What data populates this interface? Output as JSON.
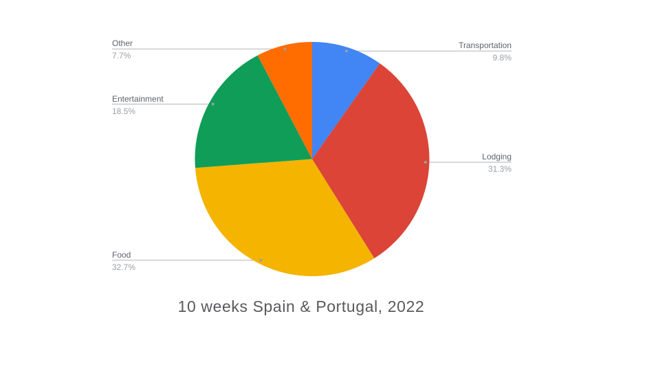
{
  "chart_data": {
    "type": "pie",
    "title": "10 weeks Spain & Portugal, 2022",
    "labels": [
      "Transportation",
      "Lodging",
      "Food",
      "Entertainment",
      "Other"
    ],
    "values": [
      9.8,
      31.3,
      32.7,
      18.5,
      7.7
    ],
    "percent_labels": [
      "9.8%",
      "31.3%",
      "32.7%",
      "18.5%",
      "7.7%"
    ],
    "colors": [
      "#4285f4",
      "#db4437",
      "#f4b400",
      "#0f9d58",
      "#ff6d00"
    ],
    "start_angle_deg": 0,
    "direction": "clockwise",
    "legend_position": "outside-callout-labels",
    "leader_line_color": "#b3b3b3",
    "leader_dot_color": "#9e9e9e",
    "label_name_color": "#5f6368",
    "label_pct_color": "#9aa0a6",
    "title_color": "#58595b",
    "background_color": "#ffffff"
  }
}
